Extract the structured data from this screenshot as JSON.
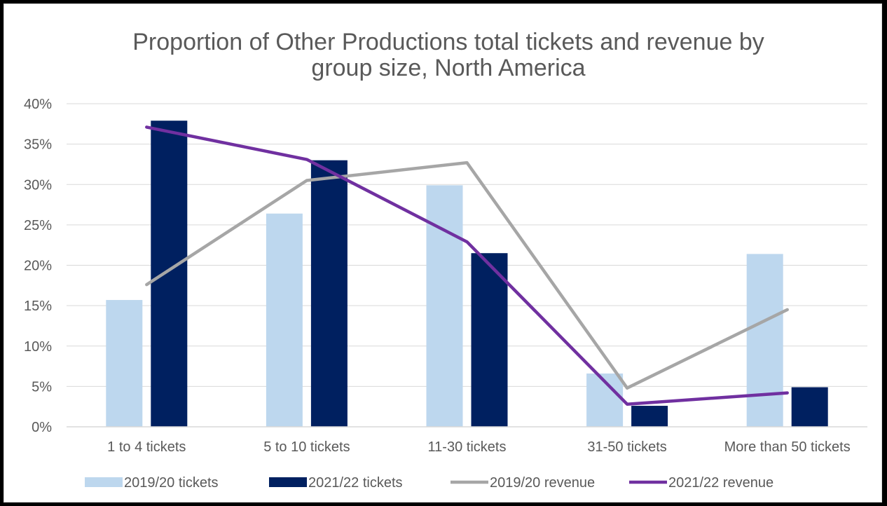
{
  "chart_data": {
    "type": "bar",
    "title_line1": "Proportion of Other Productions total tickets and revenue by",
    "title_line2": "group size, North America",
    "categories": [
      "1 to 4 tickets",
      "5 to 10 tickets",
      "11-30 tickets",
      "31-50 tickets",
      "More than 50 tickets"
    ],
    "ylim": [
      0,
      40
    ],
    "yticks": [
      "0%",
      "5%",
      "10%",
      "15%",
      "20%",
      "25%",
      "30%",
      "35%",
      "40%"
    ],
    "grid": true,
    "legend_position": "bottom",
    "series": [
      {
        "name": "2019/20 tickets",
        "kind": "bar",
        "color": "#bdd7ee",
        "values": [
          15.7,
          26.4,
          29.9,
          6.6,
          21.4
        ]
      },
      {
        "name": "2021/22 tickets",
        "kind": "bar",
        "color": "#002060",
        "values": [
          37.9,
          33.0,
          21.5,
          2.6,
          4.9
        ]
      },
      {
        "name": "2019/20 revenue",
        "kind": "line",
        "color": "#a6a6a6",
        "values": [
          17.6,
          30.5,
          32.7,
          4.8,
          14.5
        ]
      },
      {
        "name": "2021/22 revenue",
        "kind": "line",
        "color": "#7030a0",
        "values": [
          37.1,
          33.1,
          22.9,
          2.8,
          4.2
        ]
      }
    ]
  }
}
